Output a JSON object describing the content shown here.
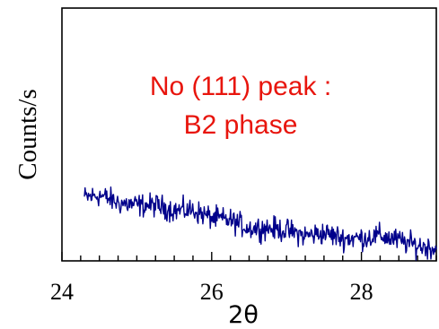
{
  "chart_data": {
    "type": "line",
    "title": "",
    "xlabel": "2θ",
    "ylabel": "Counts/s",
    "xlim": [
      24,
      29
    ],
    "ylim": [
      0,
      1
    ],
    "x_ticks": [
      24,
      26,
      28
    ],
    "x_tick_labels": [
      "24",
      "26",
      "28"
    ],
    "grid": false,
    "annotation": [
      "No (111) peak :",
      "B2 phase"
    ],
    "series": [
      {
        "color": "#00008b",
        "x": [
          24.3,
          24.5,
          24.75,
          25.0,
          25.25,
          25.5,
          25.75,
          26.0,
          26.25,
          26.5,
          26.75,
          27.0,
          27.25,
          27.5,
          27.75,
          28.0,
          28.25,
          28.5,
          28.75,
          29.0
        ],
        "y": [
          0.25,
          0.26,
          0.23,
          0.22,
          0.22,
          0.2,
          0.2,
          0.17,
          0.16,
          0.13,
          0.13,
          0.12,
          0.1,
          0.11,
          0.09,
          0.09,
          0.1,
          0.08,
          0.06,
          0.05
        ]
      }
    ]
  }
}
